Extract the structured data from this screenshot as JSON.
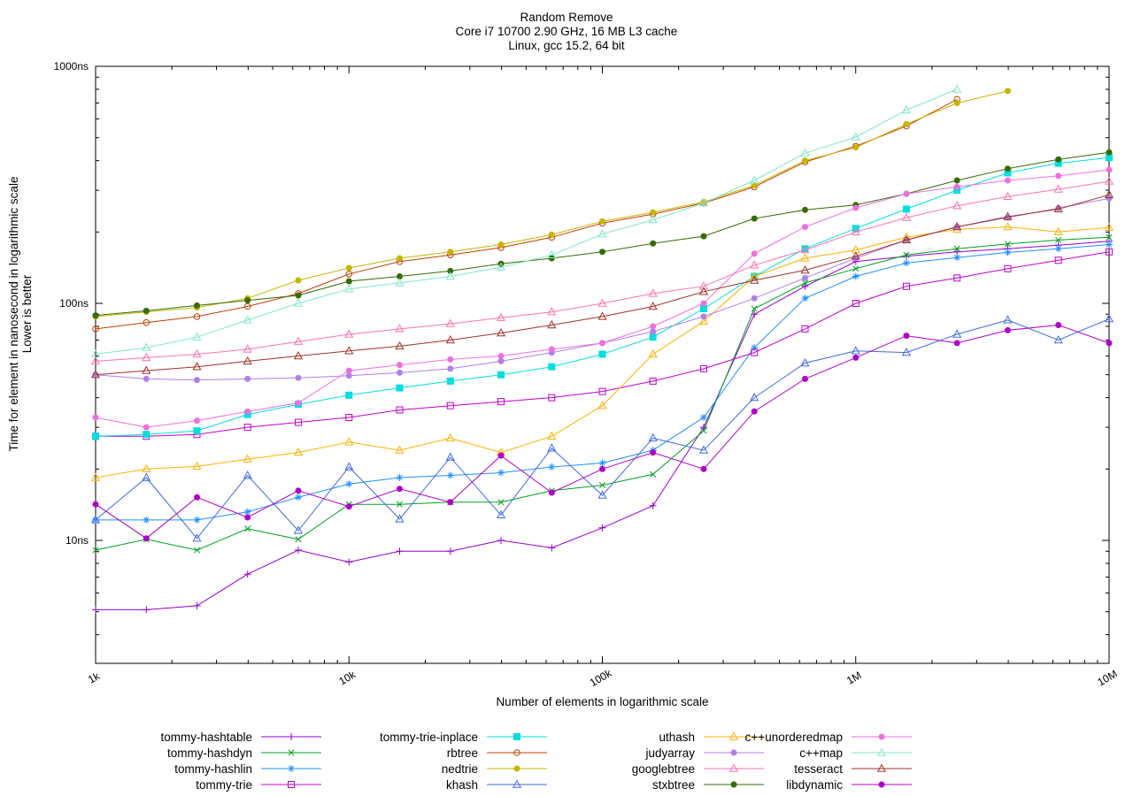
{
  "title": {
    "line1": "Random Remove",
    "line2": "Core i7 10700 2.90 GHz, 16 MB L3 cache",
    "line3": "Linux, gcc 15.2, 64 bit"
  },
  "axes": {
    "x_label": "Number of elements in logarithmic scale",
    "y_label_line1": "Time for element in nanosecond in logarithmic scale",
    "y_label_line2": "Lower is better",
    "x_tick_labels": [
      "1k",
      "10k",
      "100k",
      "1M",
      "10M"
    ],
    "x_tick_values": [
      1000,
      10000,
      100000,
      1000000,
      10000000
    ],
    "y_tick_labels": [
      "10ns",
      "100ns",
      "1000ns"
    ],
    "y_tick_values": [
      10,
      100,
      1000
    ]
  },
  "chart_data": {
    "type": "line",
    "x_scale": "log",
    "y_scale": "log",
    "title": "Random Remove",
    "xlabel": "Number of elements in logarithmic scale",
    "ylabel": "Time for element in nanosecond in logarithmic scale",
    "x_range": [
      1000,
      10000000
    ],
    "y_range_ns": [
      3,
      1000
    ],
    "grid": false,
    "legend_position": "bottom",
    "legend_columns": 4,
    "x": [
      1000,
      1585,
      2512,
      3981,
      6310,
      10000,
      15849,
      25119,
      39811,
      63096,
      100000,
      158489,
      251189,
      398107,
      630957,
      1000000,
      1584893,
      2511886,
      3981072,
      6309573,
      10000000
    ],
    "series": [
      {
        "name": "tommy-hashtable",
        "color": "#9400d3",
        "marker": "plus",
        "values": [
          5.1,
          5.1,
          5.3,
          7.2,
          9.1,
          8.1,
          9,
          9,
          10,
          9.3,
          11.3,
          14,
          30,
          90,
          118,
          150,
          158,
          165,
          170,
          176,
          183
        ]
      },
      {
        "name": "tommy-hashdyn",
        "color": "#00a020",
        "marker": "x",
        "values": [
          9.1,
          10.1,
          9.1,
          11.2,
          10.1,
          14.2,
          14.2,
          14.5,
          14.5,
          16.2,
          17.1,
          19,
          29,
          95,
          122,
          140,
          160,
          170,
          178,
          185,
          190
        ]
      },
      {
        "name": "tommy-hashlin",
        "color": "#1e90ff",
        "marker": "asterisk",
        "values": [
          12.2,
          12.2,
          12.2,
          13.2,
          15.2,
          17.3,
          18.4,
          18.8,
          19.3,
          20.4,
          21.2,
          24,
          33,
          65,
          105,
          130,
          148,
          156,
          164,
          170,
          177
        ]
      },
      {
        "name": "tommy-trie",
        "color": "#c000d0",
        "marker": "square-open",
        "values": [
          27.5,
          27.5,
          28,
          30,
          31.5,
          33,
          35.5,
          37,
          38.5,
          40,
          42.5,
          47,
          53,
          62,
          78,
          100,
          118,
          128,
          140,
          152,
          165
        ]
      },
      {
        "name": "tommy-trie-inplace",
        "color": "#00dede",
        "marker": "square-filled",
        "values": [
          27.5,
          28,
          29,
          34,
          37.5,
          41,
          44,
          47,
          50,
          54,
          61,
          72,
          95,
          130,
          170,
          207,
          250,
          300,
          355,
          390,
          412
        ]
      },
      {
        "name": "rbtree",
        "color": "#c04000",
        "marker": "circle-open",
        "values": [
          78,
          83,
          88,
          97,
          110,
          133,
          150,
          160,
          172,
          190,
          218,
          238,
          265,
          310,
          395,
          460,
          560,
          725,
          null,
          null,
          null
        ]
      },
      {
        "name": "nedtrie",
        "color": "#c8b400",
        "marker": "circle-filled",
        "values": [
          88,
          92,
          96,
          105,
          125,
          141,
          155,
          165,
          177,
          195,
          222,
          242,
          268,
          315,
          400,
          455,
          570,
          700,
          787,
          null,
          null
        ]
      },
      {
        "name": "khash",
        "color": "#4169e1",
        "marker": "triangle-open",
        "values": [
          12.2,
          18.4,
          10.2,
          18.8,
          11,
          20.4,
          12.3,
          22.4,
          12.8,
          24.5,
          15.5,
          27,
          24,
          40,
          56,
          63,
          62,
          74,
          85,
          70,
          86
        ]
      },
      {
        "name": "uthash",
        "color": "#ffb000",
        "marker": "triangle-open",
        "values": [
          18.4,
          20,
          20.5,
          22,
          23.5,
          26,
          24,
          27,
          23.5,
          27.5,
          37,
          61,
          84,
          130,
          155,
          168,
          190,
          205,
          210,
          200,
          209
        ]
      },
      {
        "name": "judyarray",
        "color": "#b080e8",
        "marker": "circle-filled",
        "values": [
          50,
          48,
          47.5,
          48,
          48.5,
          49.5,
          51,
          53,
          57,
          62,
          68,
          76,
          88,
          105,
          128,
          155,
          185,
          210,
          230,
          252,
          277
        ]
      },
      {
        "name": "googlebtree",
        "color": "#ff70b0",
        "marker": "triangle-open",
        "values": [
          57,
          59,
          61,
          64,
          69,
          74,
          78,
          82,
          87,
          92,
          100,
          110,
          118,
          145,
          168,
          200,
          230,
          258,
          282,
          303,
          327
        ]
      },
      {
        "name": "stxbtree",
        "color": "#356b00",
        "marker": "circle-filled",
        "values": [
          89,
          93,
          98,
          103,
          108,
          124,
          130,
          137,
          147,
          155,
          165,
          179,
          192,
          228,
          248,
          260,
          290,
          330,
          370,
          405,
          434
        ]
      },
      {
        "name": "c++unorderedmap",
        "color": "#ee70e0",
        "marker": "circle-filled",
        "values": [
          33,
          30,
          32,
          35,
          38,
          52,
          55,
          58,
          60,
          64,
          68,
          80,
          100,
          162,
          210,
          253,
          290,
          310,
          330,
          345,
          366
        ]
      },
      {
        "name": "c++map",
        "color": "#7fe8c8",
        "marker": "triangle-open",
        "values": [
          61,
          65,
          72,
          85,
          100,
          115,
          122,
          130,
          142,
          160,
          196,
          225,
          265,
          330,
          430,
          503,
          654,
          800,
          null,
          null,
          null
        ]
      },
      {
        "name": "tesseract",
        "color": "#a03028",
        "marker": "triangle-open",
        "values": [
          50,
          52,
          54,
          57,
          60,
          63,
          66,
          70,
          75,
          81,
          88,
          97,
          112,
          125,
          138,
          158,
          185,
          210,
          232,
          250,
          287
        ]
      },
      {
        "name": "libdynamic",
        "color": "#b000c8",
        "marker": "circle-filled",
        "values": [
          14.2,
          10.2,
          15.2,
          12.5,
          16.2,
          13.9,
          16.5,
          14.5,
          22.8,
          15.9,
          20,
          23.5,
          20,
          35,
          48,
          59,
          73,
          68,
          77,
          81,
          68
        ]
      }
    ]
  }
}
